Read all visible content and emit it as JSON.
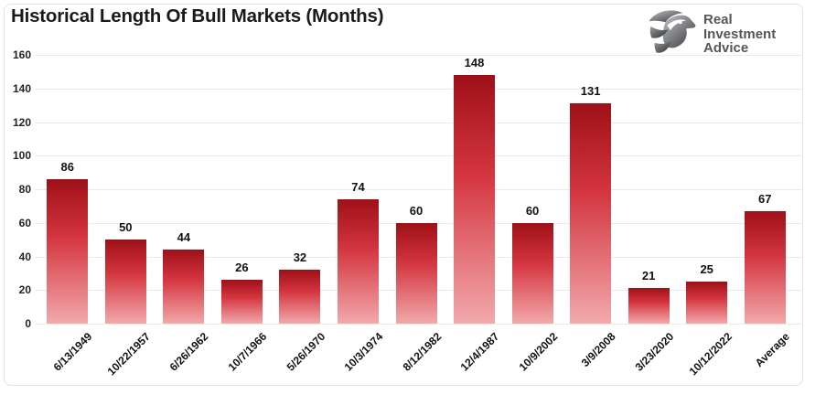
{
  "header": {
    "title": "Historical Length Of Bull Markets (Months)"
  },
  "logo": {
    "brand_name": "Real Investment Advice",
    "lines": [
      "Real",
      "Investment",
      "Advice"
    ],
    "icon": "eagle-icon",
    "text_color": "#55565a"
  },
  "chart_data": {
    "type": "bar",
    "title": "Historical Length Of Bull Markets (Months)",
    "categories": [
      "6/13/1949",
      "10/22/1957",
      "6/26/1962",
      "10/7/1966",
      "5/26/1970",
      "10/3/1974",
      "8/12/1982",
      "12/4/1987",
      "10/9/2002",
      "3/9/2008",
      "3/23/2020",
      "10/12/2022",
      "Average"
    ],
    "values": [
      86,
      50,
      44,
      26,
      32,
      74,
      60,
      148,
      60,
      131,
      21,
      25,
      67
    ],
    "xlabel": "",
    "ylabel": "",
    "ylim": [
      0,
      160
    ],
    "ytick_step": 20,
    "grid": true,
    "legend": "none",
    "bar_gradient_top": "#9e1018",
    "bar_gradient_mid": "#d4353f",
    "bar_gradient_bottom": "#f2a9ac",
    "gridline_color": "#e9e9e9",
    "label_color": "#111111"
  }
}
